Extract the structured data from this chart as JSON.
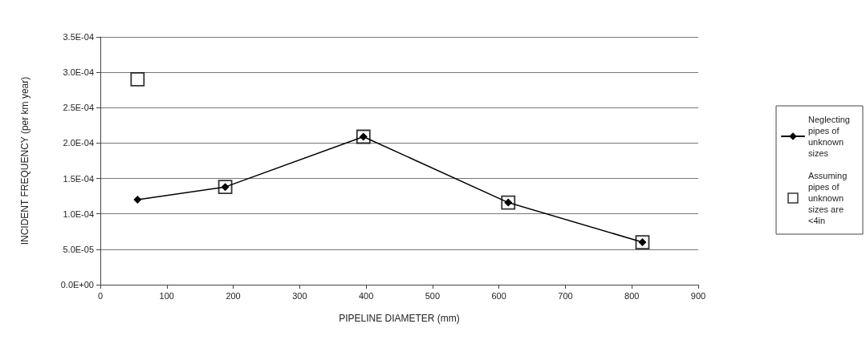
{
  "chart_data": {
    "type": "line",
    "xlabel": "PIPELINE DIAMETER (mm)",
    "ylabel": "INCIDENT FREQUENCY (per km year)",
    "xlim": [
      0,
      900
    ],
    "xticks": [
      0,
      100,
      200,
      300,
      400,
      500,
      600,
      700,
      800,
      900
    ],
    "ylim": [
      0,
      0.00035
    ],
    "yticks": [
      {
        "value": 0,
        "label": "0.0E+00"
      },
      {
        "value": 5e-05,
        "label": "5.0E-05"
      },
      {
        "value": 0.0001,
        "label": "1.0E-04"
      },
      {
        "value": 0.00015,
        "label": "1.5E-04"
      },
      {
        "value": 0.0002,
        "label": "2.0E-04"
      },
      {
        "value": 0.00025,
        "label": "2.5E-04"
      },
      {
        "value": 0.0003,
        "label": "3.0E-04"
      },
      {
        "value": 0.00035,
        "label": "3.5E-04"
      }
    ],
    "grid": "y",
    "legend": "right",
    "series": [
      {
        "name": "Neglecting pipes of unknown sizes",
        "marker": "diamond",
        "line_style": "solid",
        "color": "#000000",
        "x": [
          56,
          188,
          396,
          614,
          816
        ],
        "values": [
          0.00012,
          0.000138,
          0.000209,
          0.000116,
          6e-05
        ]
      },
      {
        "name": "Assuming pipes of unknown sizes are <4in",
        "type": "scatter",
        "marker": "square",
        "color": "#000000",
        "x": [
          56,
          188,
          396,
          614,
          816
        ],
        "values": [
          0.00029,
          0.000138,
          0.000209,
          0.000116,
          6e-05
        ]
      }
    ]
  }
}
